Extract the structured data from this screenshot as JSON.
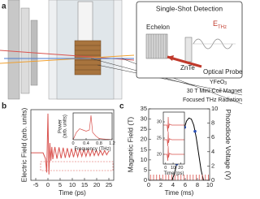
{
  "panel_labels": [
    "a",
    "b",
    "c"
  ],
  "diagram": {
    "inset_title": "Single-Shot Detection",
    "echelon": "Echelon",
    "znte": "ZnTe",
    "field": {
      "main": "E",
      "sub": "THz"
    },
    "probe": "Optical Probe",
    "sample": {
      "main": "YFeO",
      "sub": "3"
    },
    "magnet": "30 T Mini-Coil Magnet",
    "radiation": "Focused THz Radiation"
  },
  "chart_data": [
    {
      "type": "line",
      "xlabel": "Time (ps)",
      "ylabel": "Electric Field (arb. units)",
      "xlim": [
        -7,
        27
      ],
      "xticks": [
        -5,
        0,
        5,
        10,
        15,
        20,
        25
      ],
      "ylim": [
        -0.7,
        1.1
      ],
      "series": [
        {
          "color": "#d9534f",
          "x": [
            -7,
            -2,
            -1,
            -0.5,
            0,
            0.4,
            0.8,
            1.2,
            1.6,
            2.0,
            2.85,
            3.7,
            4.55,
            5.4,
            6.25,
            7.1,
            7.95,
            8.8,
            9.65,
            10.5,
            11.35,
            12.2,
            13.05,
            13.9,
            14.75,
            15.6,
            16.45,
            17.3,
            18.15,
            19,
            19.85,
            20.7,
            21.55,
            22.4,
            23.25,
            24.1,
            25
          ],
          "values": [
            0,
            0,
            -0.15,
            -0.5,
            1.0,
            -0.55,
            0.25,
            -0.2,
            0.15,
            -0.16,
            0.15,
            -0.15,
            0.14,
            -0.14,
            0.13,
            -0.13,
            0.12,
            -0.12,
            0.11,
            -0.11,
            0.1,
            -0.1,
            0.1,
            -0.09,
            0.09,
            -0.09,
            0.08,
            -0.08,
            0.08,
            -0.07,
            0.07,
            -0.07,
            0.06,
            -0.06,
            0.06,
            -0.05,
            0.05
          ]
        }
      ]
    },
    {
      "type": "line",
      "xlabel": "Frequency (THz)",
      "ylabel": [
        "Power",
        "(arb. units)"
      ],
      "xlim": [
        0,
        1.2
      ],
      "xticks": [
        0,
        0.4,
        0.8,
        1.2
      ],
      "ylim": [
        0,
        1.1
      ],
      "series": [
        {
          "color": "#d9534f",
          "x": [
            0,
            0.1,
            0.2,
            0.3,
            0.4,
            0.5,
            0.55,
            0.6,
            0.7,
            0.8,
            1.0,
            1.2
          ],
          "values": [
            0,
            0.3,
            0.45,
            0.4,
            0.35,
            0.4,
            1.0,
            0.3,
            0.15,
            0.05,
            0.02,
            0
          ]
        }
      ]
    },
    {
      "type": "line",
      "xlabel": "Time (ms)",
      "ylabel": "Magnetic Field (T)",
      "y2label": "Photodiode Voltage (V)",
      "xlim": [
        0,
        10
      ],
      "xticks": [
        0,
        2,
        4,
        6,
        8,
        10
      ],
      "ylim": [
        0,
        35
      ],
      "yticks": [
        0,
        5,
        10,
        15,
        20,
        25,
        30,
        35
      ],
      "y2lim": [
        0,
        10
      ],
      "y2ticks": [
        0,
        2,
        4,
        6,
        8,
        10
      ],
      "series": [
        {
          "type": "line",
          "color": "#000000",
          "x": [
            0,
            3.8,
            4.2,
            4.6,
            5,
            5.4,
            5.8,
            6.2,
            6.6,
            7,
            7.4,
            7.8,
            8.2,
            8.6,
            9,
            10
          ],
          "values": [
            0,
            0,
            3,
            8,
            14,
            20,
            25,
            29,
            30.5,
            30,
            27,
            21,
            13,
            5,
            0,
            0
          ]
        },
        {
          "type": "scatter",
          "color": "#2a4fb5",
          "x": [
            4.6,
            5.9,
            7.6
          ],
          "values": [
            8,
            26,
            24
          ]
        },
        {
          "type": "stem",
          "axis": "y2",
          "color": "#d9534f",
          "x": [
            0.3,
            0.8,
            1.3,
            1.8,
            2.3,
            2.8,
            3.3,
            3.8,
            4.3,
            4.8,
            5.3,
            5.8,
            6.3,
            6.8,
            7.3,
            7.8,
            8.3,
            8.8,
            9.3,
            9.8
          ],
          "values": [
            0.8,
            0.8,
            0.8,
            0.8,
            0.8,
            0.8,
            0.8,
            0.8,
            0.8,
            0.8,
            0.8,
            0.8,
            0.8,
            0.8,
            0.8,
            0.8,
            0.8,
            0.8,
            0.8,
            0.8
          ]
        }
      ]
    },
    {
      "type": "line",
      "xlabel": "Time (ps)",
      "xlim": [
        -3,
        25
      ],
      "xticks": [
        0,
        10,
        20
      ],
      "ylim": [
        17,
        33
      ],
      "yticks": [
        20,
        25,
        30
      ],
      "x": [
        -3,
        2,
        3,
        3.5,
        4,
        5,
        8,
        12,
        16,
        20,
        25
      ],
      "series": [
        {
          "color": "#d9534f",
          "values": [
            29,
            29,
            27,
            31.5,
            28,
            29.3,
            29,
            29,
            29,
            29,
            29
          ]
        },
        {
          "color": "#d9534f",
          "values": [
            24.5,
            24.5,
            22.5,
            27,
            23.5,
            24.8,
            24.5,
            24.5,
            24.5,
            24.5,
            24.5
          ]
        },
        {
          "color": "#d9534f",
          "values": [
            20,
            20,
            18,
            22.5,
            19,
            20.3,
            20,
            20,
            20,
            20,
            20
          ]
        }
      ]
    }
  ]
}
